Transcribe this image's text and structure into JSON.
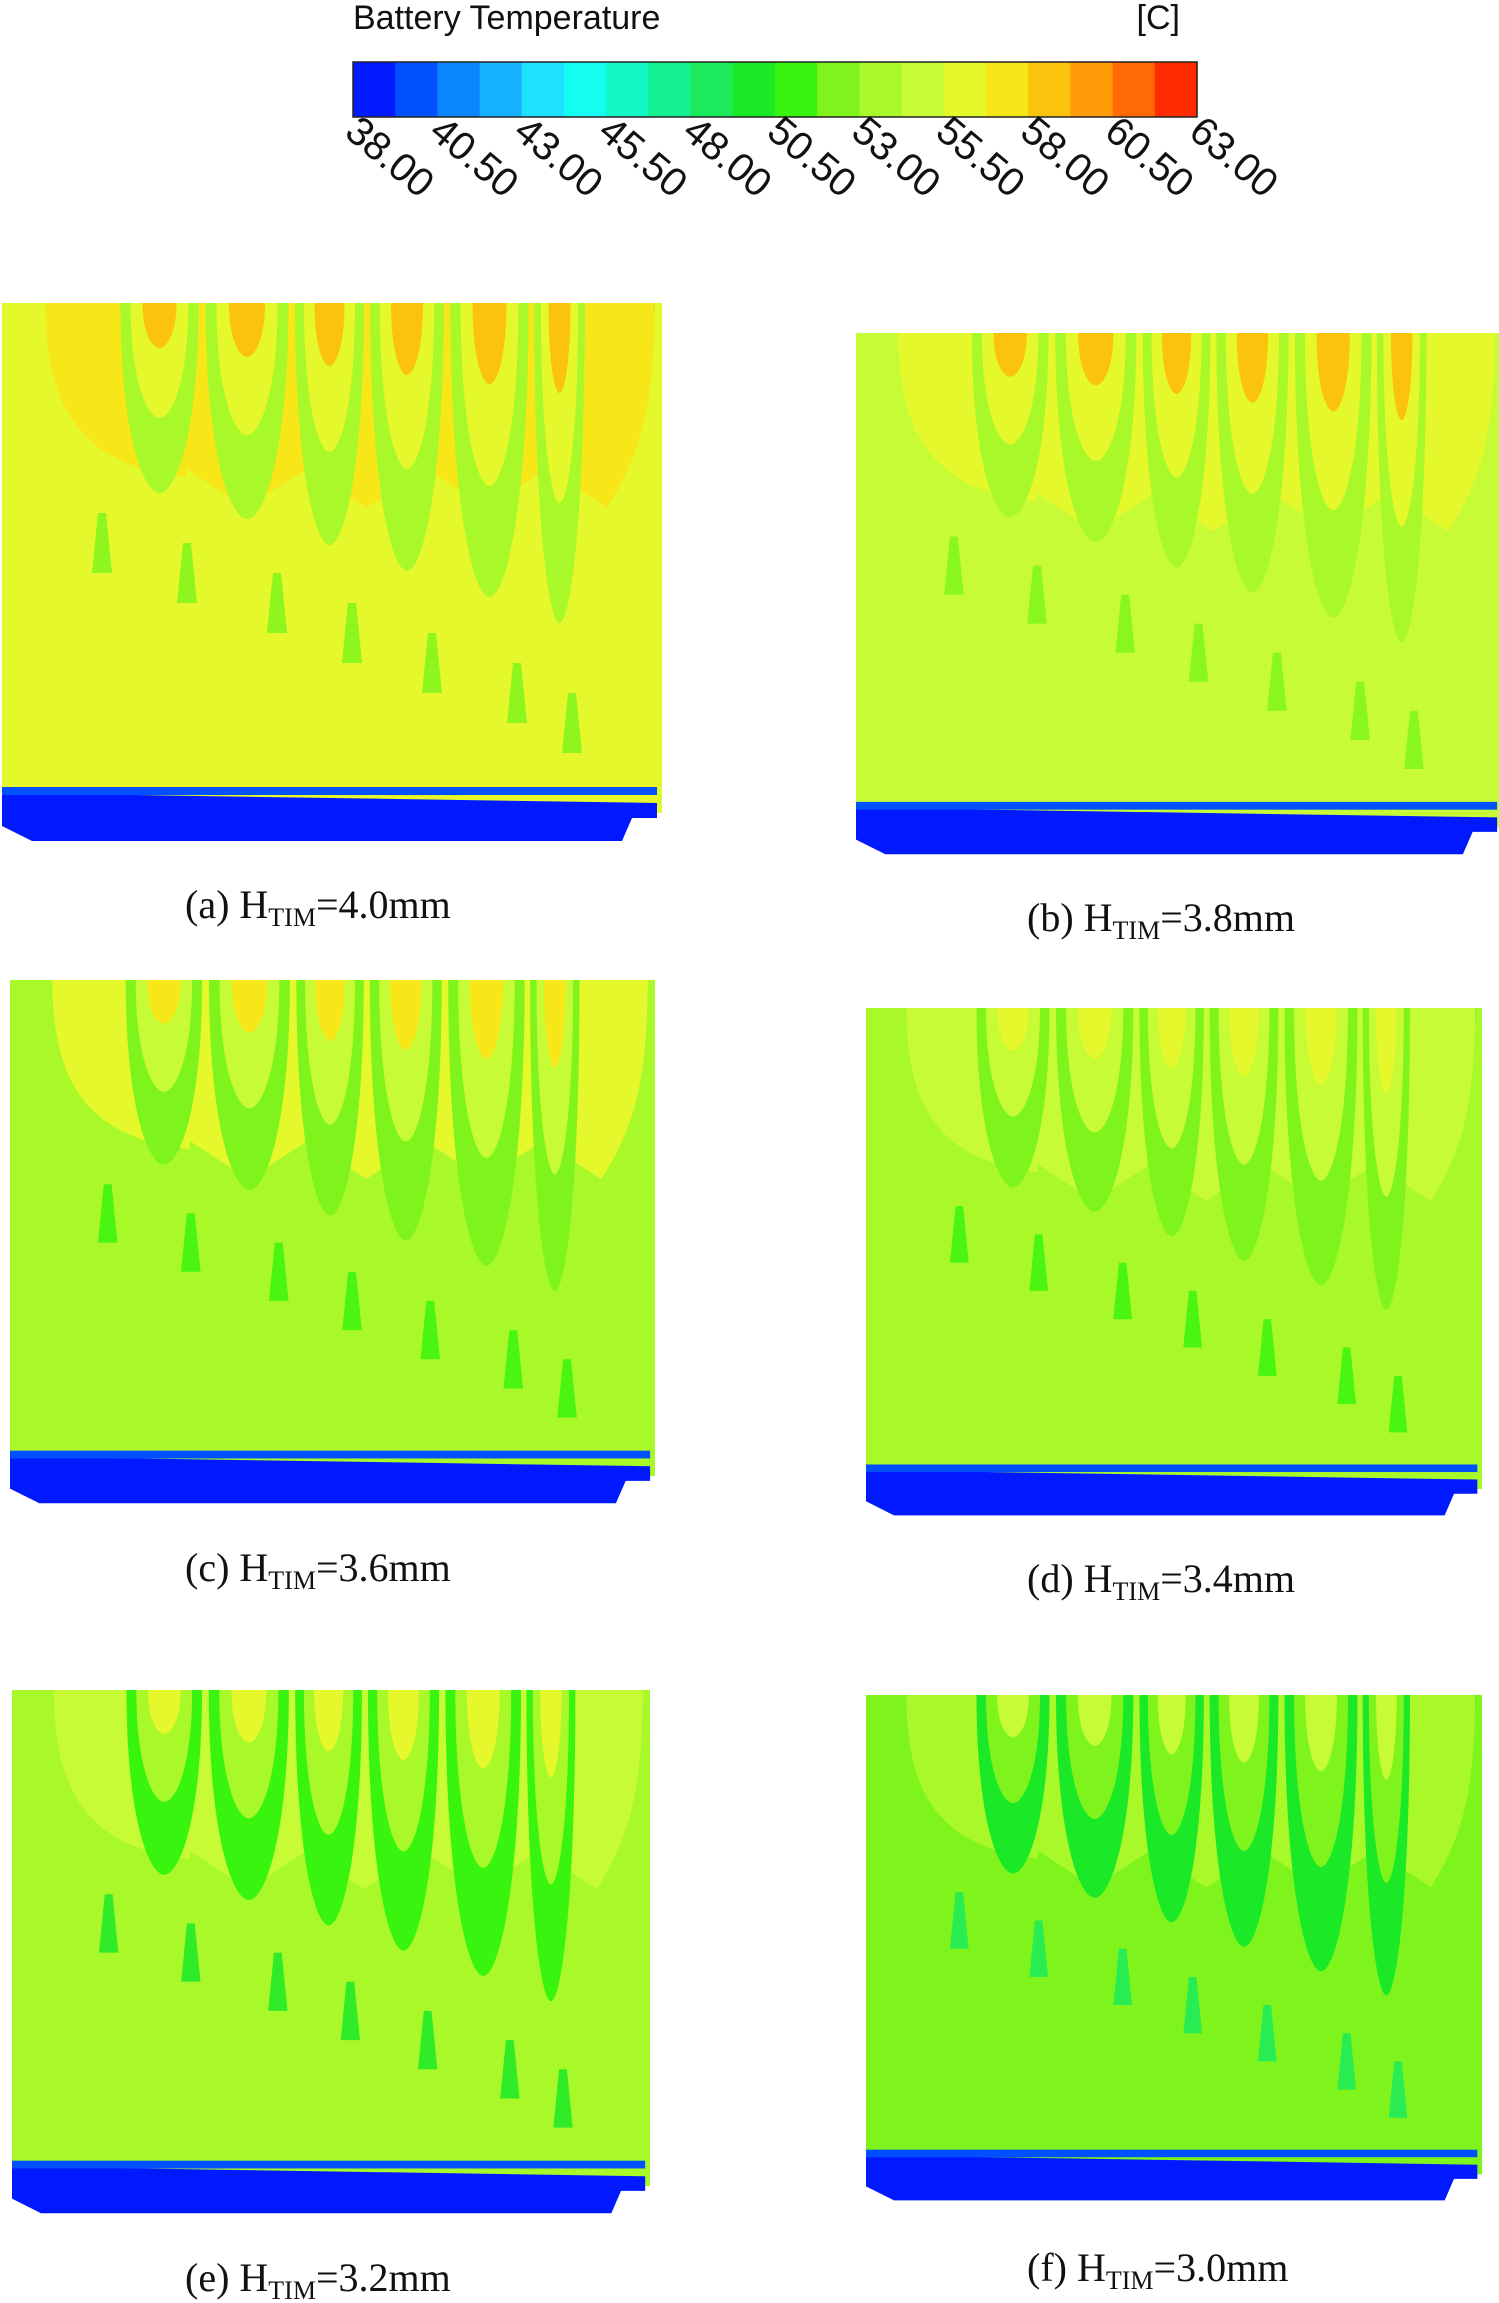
{
  "legend": {
    "title": "Battery Temperature",
    "unit": "[C]",
    "ticks": [
      "38.00",
      "40.50",
      "43.00",
      "45.50",
      "48.00",
      "50.50",
      "53.00",
      "55.50",
      "58.00",
      "60.50",
      "63.00"
    ],
    "min": 38.0,
    "max": 63.0,
    "colors": [
      "#0019ff",
      "#0050ff",
      "#0a86ff",
      "#16b2ff",
      "#1de1ff",
      "#15fdf1",
      "#12f7c4",
      "#14f090",
      "#1aea5c",
      "#1be928",
      "#39f40e",
      "#7ff41c",
      "#a8f82a",
      "#c7fb36",
      "#e4f82c",
      "#f7e719",
      "#fcc30c",
      "#ff9b06",
      "#ff6a04",
      "#ff2c02"
    ]
  },
  "panels": [
    {
      "label": "(a) H",
      "sub": "TIM",
      "value": "=4.0mm",
      "peak_c": 59.5
    },
    {
      "label": "(b) H",
      "sub": "TIM",
      "value": "=3.8mm",
      "peak_c": 59.0
    },
    {
      "label": "(c) H",
      "sub": "TIM",
      "value": "=3.6mm",
      "peak_c": 58.2
    },
    {
      "label": "(d) H",
      "sub": "TIM",
      "value": "=3.4mm",
      "peak_c": 57.5
    },
    {
      "label": "(e) H",
      "sub": "TIM",
      "value": "=3.2mm",
      "peak_c": 57.0
    },
    {
      "label": "(f) H",
      "sub": "TIM",
      "value": "=3.0mm",
      "peak_c": 55.8
    }
  ]
}
